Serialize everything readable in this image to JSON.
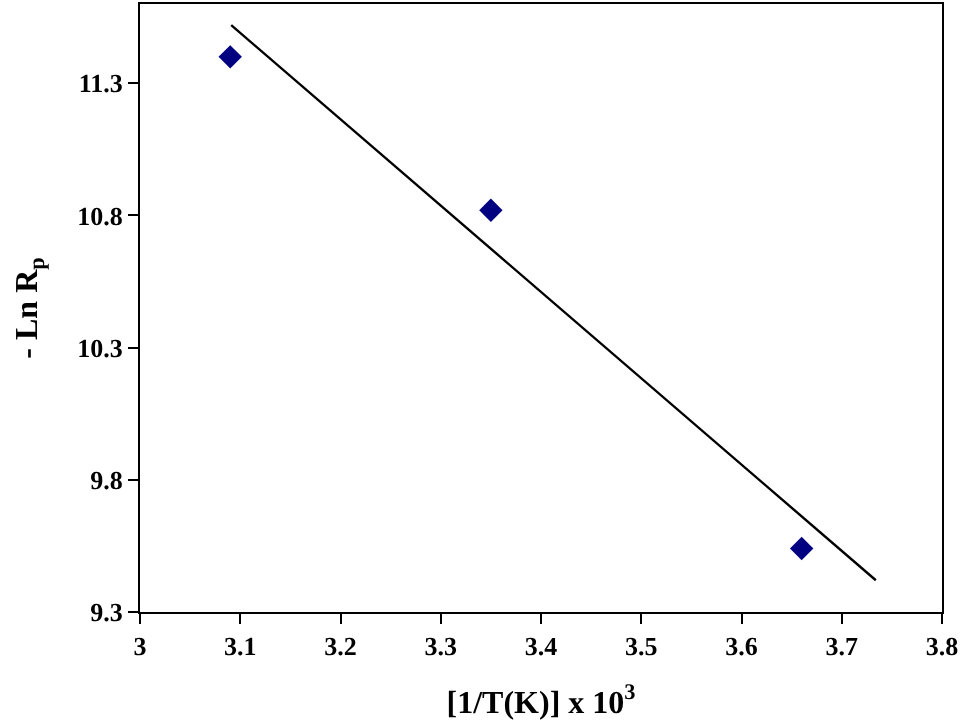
{
  "chart_data": {
    "type": "scatter",
    "xlabel": "[1/T(K)] x 10$^{3}$",
    "ylabel": "- Ln R$_{p}$",
    "xlim": [
      3,
      3.8
    ],
    "xticks": [
      3,
      3.1,
      3.2,
      3.3,
      3.4,
      3.5,
      3.6,
      3.7,
      3.8
    ],
    "ylim": [
      9.3,
      11.6
    ],
    "yticks": [
      9.3,
      9.8,
      10.3,
      10.8,
      11.3
    ],
    "marker": "diamond",
    "series": [
      {
        "color": "#000080",
        "x": [
          3.09,
          3.35,
          3.66
        ],
        "values": [
          11.4,
          10.82,
          9.54
        ]
      },
      {
        "type": "line",
        "color": "#000000",
        "x": [
          3.091,
          3.734
        ],
        "values": [
          11.52,
          9.42
        ],
        "marker": "none"
      }
    ]
  }
}
